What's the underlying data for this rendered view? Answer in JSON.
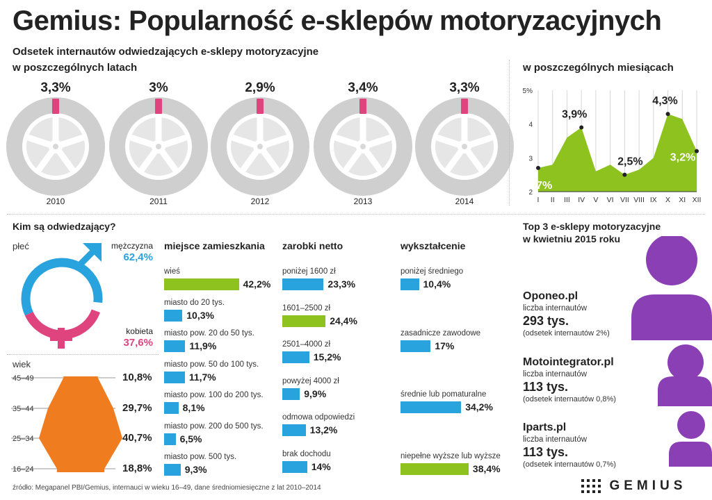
{
  "title": "Gemius: Popularność e-sklepów motoryzacyjnych",
  "subtitle_line1": "Odsetek internautów odwiedzających e-sklepy motoryzacyjne",
  "subtitle_line2": "w poszczególnych latach",
  "monthly_subtitle": "w poszczególnych miesiącach",
  "colors": {
    "green": "#8dc21f",
    "blue": "#29a3dd",
    "pink": "#e0447f",
    "orange": "#ef7c1f",
    "purple": "#8b3fb4",
    "tire": "#cfcfcf"
  },
  "chart_data": [
    {
      "type": "bar",
      "categories": [
        "2010",
        "2011",
        "2012",
        "2013",
        "2014"
      ],
      "values": [
        3.3,
        3.0,
        2.9,
        3.4,
        3.3
      ],
      "labels": [
        "3,3%",
        "3%",
        "2,9%",
        "3,4%",
        "3,3%"
      ]
    },
    {
      "type": "area",
      "title": "w poszczególnych miesiącach",
      "x": [
        "I",
        "II",
        "III",
        "IV",
        "V",
        "VI",
        "VII",
        "VIII",
        "IX",
        "X",
        "XI",
        "XII"
      ],
      "y": [
        2.7,
        2.8,
        3.6,
        3.9,
        2.6,
        2.8,
        2.5,
        2.65,
        3.0,
        4.3,
        4.15,
        3.2
      ],
      "yticks": [
        "2",
        "3",
        "4",
        "5%"
      ],
      "ylim": [
        2,
        5
      ],
      "annotations": [
        {
          "index": 0,
          "text": "2,7%"
        },
        {
          "index": 3,
          "text": "3,9%"
        },
        {
          "index": 6,
          "text": "2,5%"
        },
        {
          "index": 9,
          "text": "4,3%"
        },
        {
          "index": 11,
          "text": "3,2%"
        }
      ]
    },
    {
      "type": "bar",
      "title": "miejsce zamieszkania",
      "categories": [
        "wieś",
        "miasto do 20 tys.",
        "miasto pow. 20 do 50 tys.",
        "miasto pow. 50 do 100 tys.",
        "miasto pow. 100 do 200 tys.",
        "miasto pow. 200 do 500 tys.",
        "miasto pow. 500 tys."
      ],
      "values": [
        42.2,
        10.3,
        11.9,
        11.7,
        8.1,
        6.5,
        9.3
      ],
      "labels": [
        "42,2%",
        "10,3%",
        "11,9%",
        "11,7%",
        "8,1%",
        "6,5%",
        "9,3%"
      ],
      "highlight": [
        true,
        false,
        false,
        false,
        false,
        false,
        false
      ]
    },
    {
      "type": "bar",
      "title": "zarobki netto",
      "categories": [
        "poniżej 1600 zł",
        "1601–2500 zł",
        "2501–4000 zł",
        "powyżej 4000 zł",
        "odmowa odpowiedzi",
        "brak dochodu"
      ],
      "values": [
        23.3,
        24.4,
        15.2,
        9.9,
        13.2,
        14.0
      ],
      "labels": [
        "23,3%",
        "24,4%",
        "15,2%",
        "9,9%",
        "13,2%",
        "14%"
      ],
      "highlight": [
        false,
        true,
        false,
        false,
        false,
        false
      ]
    },
    {
      "type": "bar",
      "title": "wykształcenie",
      "categories": [
        "poniżej średniego",
        "zasadnicze zawodowe",
        "średnie lub pomaturalne",
        "niepełne wyższe lub wyższe"
      ],
      "values": [
        10.4,
        17.0,
        34.2,
        38.4
      ],
      "labels": [
        "10,4%",
        "17%",
        "34,2%",
        "38,4%"
      ],
      "highlight": [
        false,
        false,
        false,
        true
      ]
    },
    {
      "type": "bar",
      "title": "wiek",
      "categories": [
        "45–49",
        "35–44",
        "25–34",
        "16–24"
      ],
      "values": [
        10.8,
        29.7,
        40.7,
        18.8
      ],
      "labels": [
        "10,8%",
        "29,7%",
        "40,7%",
        "18,8%"
      ]
    },
    {
      "type": "pie",
      "title": "płeć",
      "categories": [
        "mężczyzna",
        "kobieta"
      ],
      "values": [
        62.4,
        37.6
      ],
      "labels": [
        "62,4%",
        "37,6%"
      ]
    }
  ],
  "who": {
    "heading": "Kim są odwiedzający?",
    "gender_heading": "płeć",
    "age_heading": "wiek"
  },
  "top3": {
    "heading_line1": "Top 3 e-sklepy motoryzacyjne",
    "heading_line2": "w kwietniu 2015 roku",
    "shops": [
      {
        "name": "Oponeo.pl",
        "sub": "liczba internautów",
        "value": "293 tys.",
        "pct": "(odsetek internautów 2%)"
      },
      {
        "name": "Motointegrator.pl",
        "sub": "liczba internautów",
        "value": "113 tys.",
        "pct": "(odsetek internautów 0,8%)"
      },
      {
        "name": "Iparts.pl",
        "sub": "liczba internautów",
        "value": "113 tys.",
        "pct": "(odsetek internautów 0,7%)"
      }
    ]
  },
  "source": "źródło: Megapanel PBI/Gemius, internauci w wieku 16–49, dane średniomiesięczne z lat 2010–2014",
  "logo": "GEMIUS"
}
